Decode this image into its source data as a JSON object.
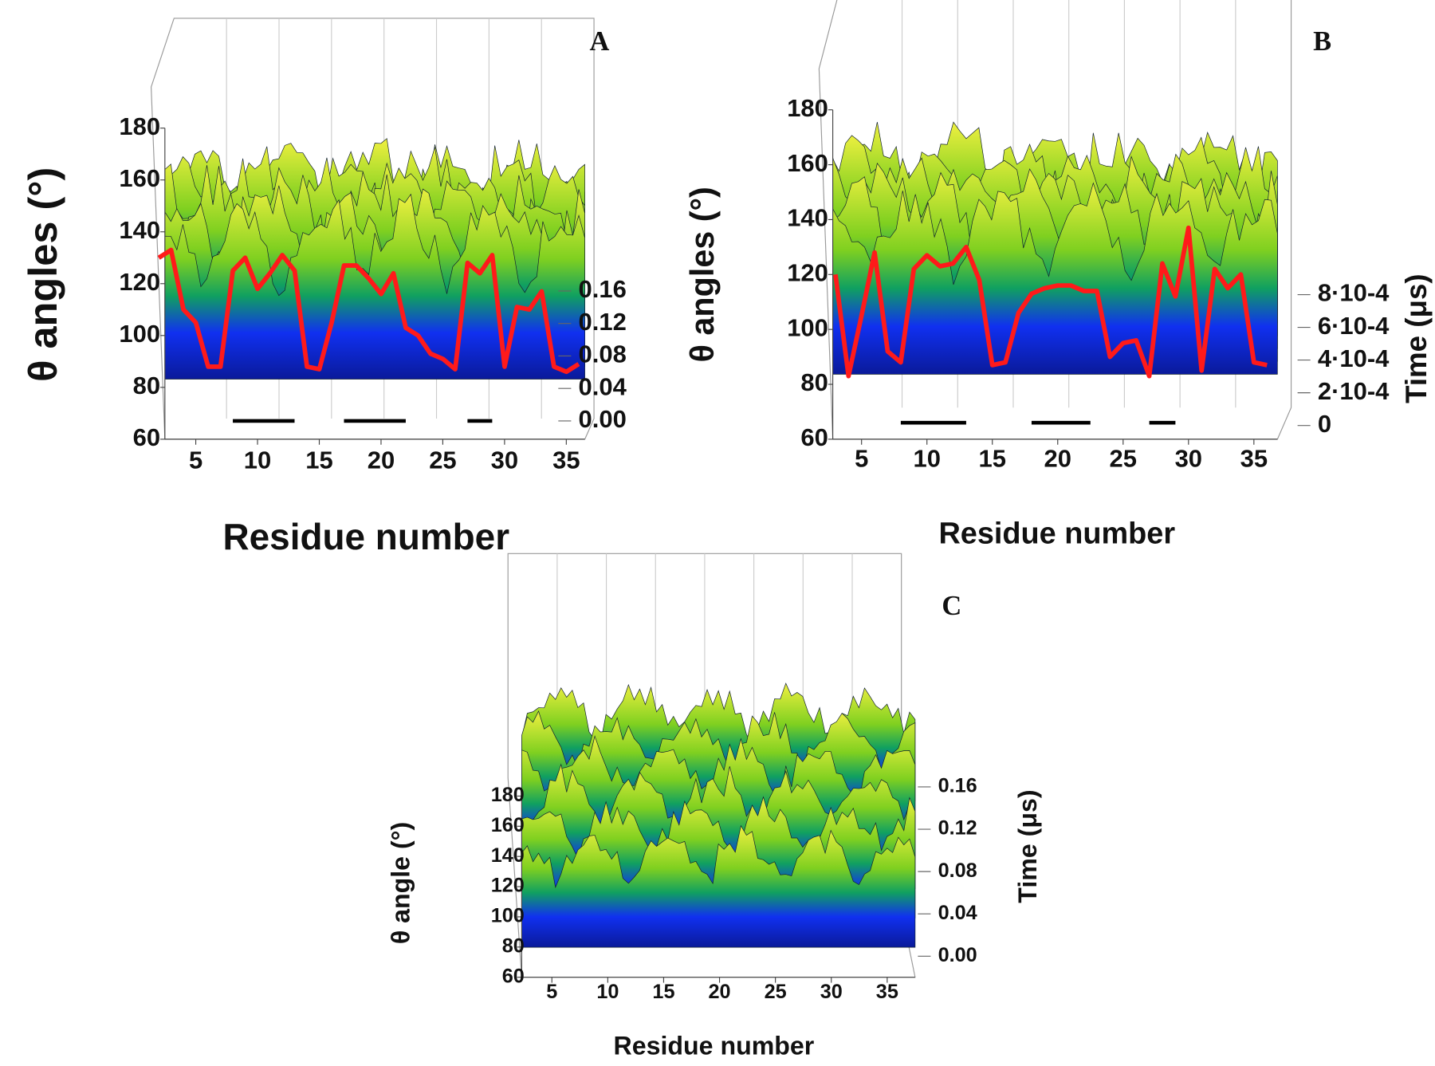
{
  "chart_data": [
    {
      "type": "surface3d",
      "title": "A",
      "x_label": "Residue number",
      "y_label": "θ angles (°)",
      "xlim": [
        2.5,
        36.5
      ],
      "xticks": [
        5,
        10,
        15,
        20,
        25,
        30,
        35
      ],
      "ylim": [
        60,
        180
      ],
      "yticks": [
        60,
        80,
        100,
        120,
        140,
        160,
        180
      ],
      "zlim": [
        0,
        0.16
      ],
      "zticks": [
        {
          "value": 0,
          "label": "0.00"
        },
        {
          "value": 0.04,
          "label": "0.04"
        },
        {
          "value": 0.08,
          "label": "0.08"
        },
        {
          "value": 0.12,
          "label": "0.12"
        },
        {
          "value": 0.16,
          "label": "0.16"
        }
      ],
      "x": [
        2,
        3,
        4,
        5,
        6,
        7,
        8,
        9,
        10,
        11,
        12,
        13,
        14,
        15,
        16,
        17,
        18,
        19,
        20,
        21,
        22,
        23,
        24,
        25,
        26,
        27,
        28,
        29,
        30,
        31,
        32,
        33,
        34,
        35,
        36
      ],
      "series": [
        {
          "color": "#ff1a1a",
          "values": [
            130,
            133,
            110,
            105,
            88,
            88,
            125,
            130,
            118,
            124,
            131,
            125,
            88,
            87,
            105,
            127,
            127,
            122,
            116,
            124,
            103,
            100,
            93,
            91,
            87,
            128,
            124,
            131,
            88,
            111,
            110,
            117,
            88,
            86,
            89
          ]
        }
      ],
      "segments": [
        [
          8,
          13
        ],
        [
          17,
          22
        ],
        [
          27,
          29
        ]
      ]
    },
    {
      "type": "surface3d",
      "title": "B",
      "x_label": "Residue number",
      "y_label": "θ angles (°)",
      "z_label": "Time (μs)",
      "xlim": [
        2.8,
        36.8
      ],
      "xticks": [
        5,
        10,
        15,
        20,
        25,
        30,
        35
      ],
      "ylim": [
        60,
        180
      ],
      "yticks": [
        60,
        80,
        100,
        120,
        140,
        160,
        180
      ],
      "zlim": [
        0,
        0.0008
      ],
      "zticks": [
        0,
        {
          "value": 0.0002,
          "label": "2·10-4"
        },
        {
          "value": 0.0004,
          "label": "4·10-4"
        },
        {
          "value": 0.0006,
          "label": "6·10-4"
        },
        {
          "value": 0.0008,
          "label": "8·10-4"
        }
      ],
      "x": [
        3,
        4,
        5,
        6,
        7,
        8,
        9,
        10,
        11,
        12,
        13,
        14,
        15,
        16,
        17,
        18,
        19,
        20,
        21,
        22,
        23,
        24,
        25,
        26,
        27,
        28,
        29,
        30,
        31,
        32,
        33,
        34,
        35,
        36
      ],
      "series": [
        {
          "color": "#ff1a1a",
          "values": [
            120,
            83,
            105,
            128,
            92,
            88,
            122,
            127,
            123,
            124,
            130,
            118,
            87,
            88,
            106,
            113,
            115,
            116,
            116,
            114,
            114,
            90,
            95,
            96,
            83,
            124,
            112,
            137,
            85,
            122,
            115,
            120,
            88,
            87
          ]
        }
      ],
      "segments": [
        [
          8,
          13
        ],
        [
          18,
          22.5
        ],
        [
          27,
          29
        ]
      ]
    },
    {
      "type": "surface3d",
      "title": "C",
      "x_label": "Residue number",
      "y_label": "θ angle (°)",
      "z_label": "Time (μs)",
      "xlim": [
        2.3,
        37.5
      ],
      "xticks": [
        5,
        10,
        15,
        20,
        25,
        30,
        35
      ],
      "ylim": [
        60,
        180
      ],
      "yticks": [
        60,
        80,
        100,
        120,
        140,
        160,
        180
      ],
      "zlim": [
        0,
        0.16
      ],
      "zticks": [
        {
          "value": 0,
          "label": "0.00"
        },
        {
          "value": 0.04,
          "label": "0.04"
        },
        {
          "value": 0.08,
          "label": "0.08"
        },
        {
          "value": 0.12,
          "label": "0.12"
        },
        {
          "value": 0.16,
          "label": "0.16"
        }
      ]
    }
  ]
}
